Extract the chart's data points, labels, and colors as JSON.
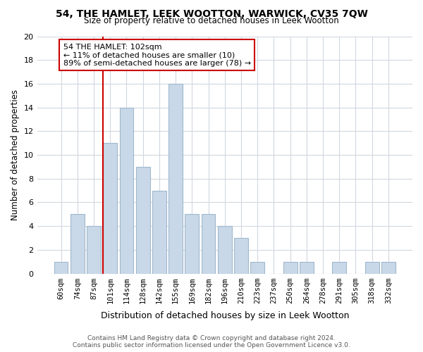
{
  "title": "54, THE HAMLET, LEEK WOOTTON, WARWICK, CV35 7QW",
  "subtitle": "Size of property relative to detached houses in Leek Wootton",
  "xlabel": "Distribution of detached houses by size in Leek Wootton",
  "ylabel": "Number of detached properties",
  "bar_labels": [
    "60sqm",
    "74sqm",
    "87sqm",
    "101sqm",
    "114sqm",
    "128sqm",
    "142sqm",
    "155sqm",
    "169sqm",
    "182sqm",
    "196sqm",
    "210sqm",
    "223sqm",
    "237sqm",
    "250sqm",
    "264sqm",
    "278sqm",
    "291sqm",
    "305sqm",
    "318sqm",
    "332sqm"
  ],
  "bar_values": [
    1,
    5,
    4,
    11,
    14,
    9,
    7,
    16,
    5,
    5,
    4,
    3,
    1,
    0,
    1,
    1,
    0,
    1,
    0,
    1,
    1
  ],
  "bar_color": "#c8d8e8",
  "bar_edgecolor": "#a0b8cc",
  "vline_x": 2.575,
  "vline_color": "#cc0000",
  "annotation_line1": "54 THE HAMLET: 102sqm",
  "annotation_line2": "← 11% of detached houses are smaller (10)",
  "annotation_line3": "89% of semi-detached houses are larger (78) →",
  "annotation_box_color": "#ffffff",
  "annotation_box_edgecolor": "#cc0000",
  "ylim": [
    0,
    20
  ],
  "yticks": [
    0,
    2,
    4,
    6,
    8,
    10,
    12,
    14,
    16,
    18,
    20
  ],
  "footer": "Contains HM Land Registry data © Crown copyright and database right 2024.\nContains public sector information licensed under the Open Government Licence v3.0.",
  "background_color": "#ffffff",
  "grid_color": "#d0d8e0"
}
